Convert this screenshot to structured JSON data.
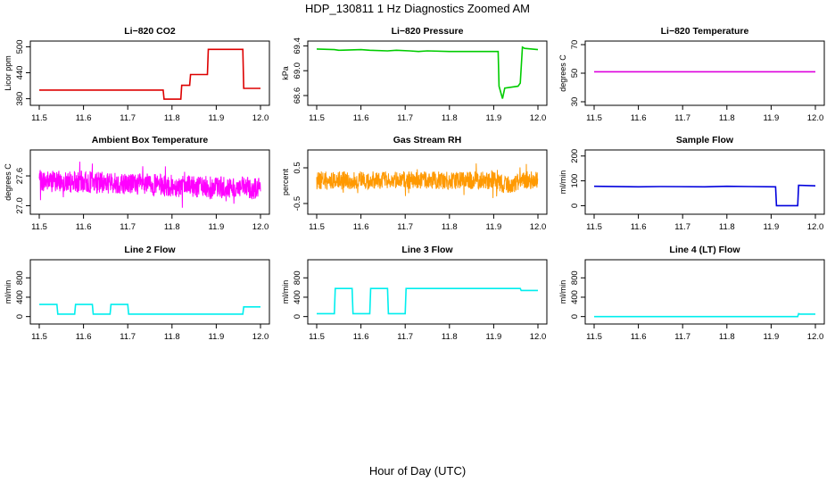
{
  "figure": {
    "title": "HDP_130811  1 Hz Diagnostics Zoomed AM",
    "xlabel": "Hour of Day (UTC)"
  },
  "chart_data": [
    {
      "type": "line",
      "title": "Li−820 CO2",
      "xlabel": "",
      "ylabel": "Licor ppm",
      "color": "#dd0000",
      "xlim": [
        11.5,
        12.0
      ],
      "ylim": [
        373,
        505
      ],
      "xticks": [
        11.5,
        11.6,
        11.7,
        11.8,
        11.9,
        12.0
      ],
      "yticks": [
        380,
        440,
        500
      ],
      "series": [
        {
          "x": [
            11.5,
            11.78,
            11.782,
            11.82,
            11.822,
            11.84,
            11.842,
            11.88,
            11.882,
            11.96,
            11.962,
            12.0
          ],
          "y": [
            400,
            400,
            379,
            379,
            411,
            411,
            436,
            436,
            494,
            494,
            404,
            404
          ]
        }
      ]
    },
    {
      "type": "line",
      "title": "Li−820 Pressure",
      "xlabel": "",
      "ylabel": "kPa",
      "color": "#00cc00",
      "xlim": [
        11.5,
        12.0
      ],
      "ylim": [
        68.5,
        69.42
      ],
      "xticks": [
        11.5,
        11.6,
        11.7,
        11.8,
        11.9,
        12.0
      ],
      "yticks": [
        68.6,
        69.0,
        69.4
      ],
      "series": [
        {
          "x": [
            11.5,
            11.54,
            11.55,
            11.6,
            11.62,
            11.66,
            11.68,
            11.71,
            11.73,
            11.75,
            11.8,
            11.85,
            11.91,
            11.912,
            11.92,
            11.925,
            11.955,
            11.96,
            11.965,
            11.97,
            12.0
          ],
          "y": [
            69.35,
            69.34,
            69.33,
            69.34,
            69.33,
            69.32,
            69.33,
            69.32,
            69.31,
            69.32,
            69.31,
            69.31,
            69.31,
            68.75,
            68.55,
            68.72,
            68.75,
            68.8,
            69.38,
            69.36,
            69.34
          ]
        }
      ]
    },
    {
      "type": "line",
      "title": "Li−820 Temperature",
      "xlabel": "",
      "ylabel": "degrees C",
      "color": "#dd00dd",
      "xlim": [
        11.5,
        12.0
      ],
      "ylim": [
        30,
        70
      ],
      "xticks": [
        11.5,
        11.6,
        11.7,
        11.8,
        11.9,
        12.0
      ],
      "yticks": [
        30,
        50,
        70
      ],
      "series": [
        {
          "x": [
            11.5,
            12.0
          ],
          "y": [
            51,
            51
          ]
        }
      ]
    },
    {
      "type": "line",
      "title": "Ambient Box Temperature",
      "xlabel": "",
      "ylabel": "degrees C",
      "color": "#ff00ff",
      "xlim": [
        11.5,
        12.0
      ],
      "ylim": [
        26.9,
        28.05
      ],
      "xticks": [
        11.5,
        11.6,
        11.7,
        11.8,
        11.9,
        12.0
      ],
      "yticks": [
        27.0,
        27.6
      ],
      "noise": {
        "center": [
          [
            11.5,
            27.5
          ],
          [
            11.7,
            27.45
          ],
          [
            11.8,
            27.4
          ],
          [
            12.0,
            27.35
          ]
        ],
        "amplitude": 0.22,
        "seed": 7
      },
      "series": []
    },
    {
      "type": "line",
      "title": "Gas Stream RH",
      "xlabel": "",
      "ylabel": "percent",
      "color": "#ff9900",
      "xlim": [
        11.5,
        12.0
      ],
      "ylim": [
        -0.7,
        0.9
      ],
      "xticks": [
        11.5,
        11.6,
        11.7,
        11.8,
        11.9,
        12.0
      ],
      "yticks": [
        -0.5,
        0.5
      ],
      "noise": {
        "center": [
          [
            11.5,
            0.15
          ],
          [
            11.8,
            0.15
          ],
          [
            11.9,
            0.15
          ],
          [
            11.93,
            0.0
          ],
          [
            11.97,
            0.15
          ],
          [
            12.0,
            0.15
          ]
        ],
        "amplitude": 0.25,
        "seed": 13
      },
      "series": []
    },
    {
      "type": "line",
      "title": "Sample Flow",
      "xlabel": "",
      "ylabel": "ml/min",
      "color": "#0000dd",
      "xlim": [
        11.5,
        12.0
      ],
      "ylim": [
        -20,
        210
      ],
      "xticks": [
        11.5,
        11.6,
        11.7,
        11.8,
        11.9,
        12.0
      ],
      "yticks": [
        0,
        100,
        200
      ],
      "series": [
        {
          "x": [
            11.5,
            11.6,
            11.65,
            11.75,
            11.8,
            11.85,
            11.91,
            11.912,
            11.95,
            11.952,
            11.96,
            11.962,
            12.0
          ],
          "y": [
            78,
            76,
            77,
            76,
            78,
            77,
            76,
            0,
            0,
            0,
            0,
            82,
            80
          ]
        }
      ]
    },
    {
      "type": "line",
      "title": "Line 2 Flow",
      "xlabel": "",
      "ylabel": "ml/min",
      "color": "#00eeee",
      "xlim": [
        11.5,
        12.0
      ],
      "ylim": [
        -80,
        1100
      ],
      "xticks": [
        11.5,
        11.6,
        11.7,
        11.8,
        11.9,
        12.0
      ],
      "yticks": [
        0,
        400,
        800
      ],
      "series": [
        {
          "x": [
            11.5,
            11.54,
            11.542,
            11.58,
            11.582,
            11.62,
            11.622,
            11.66,
            11.662,
            11.7,
            11.702,
            11.96,
            11.962,
            12.0
          ],
          "y": [
            250,
            250,
            50,
            50,
            250,
            250,
            50,
            50,
            250,
            250,
            50,
            50,
            200,
            200
          ]
        }
      ]
    },
    {
      "type": "line",
      "title": "Line 3 Flow",
      "xlabel": "",
      "ylabel": "ml/min",
      "color": "#00eeee",
      "xlim": [
        11.5,
        12.0
      ],
      "ylim": [
        -80,
        1100
      ],
      "xticks": [
        11.5,
        11.6,
        11.7,
        11.8,
        11.9,
        12.0
      ],
      "yticks": [
        0,
        400,
        800
      ],
      "series": [
        {
          "x": [
            11.5,
            11.54,
            11.542,
            11.58,
            11.582,
            11.62,
            11.622,
            11.66,
            11.662,
            11.7,
            11.702,
            11.96,
            11.962,
            12.0
          ],
          "y": [
            60,
            60,
            580,
            580,
            60,
            60,
            580,
            580,
            60,
            60,
            580,
            580,
            540,
            540
          ]
        }
      ]
    },
    {
      "type": "line",
      "title": "Line 4 (LT) Flow",
      "xlabel": "",
      "ylabel": "ml/min",
      "color": "#00eeee",
      "xlim": [
        11.5,
        12.0
      ],
      "ylim": [
        -80,
        1100
      ],
      "xticks": [
        11.5,
        11.6,
        11.7,
        11.8,
        11.9,
        12.0
      ],
      "yticks": [
        0,
        400,
        800
      ],
      "series": [
        {
          "x": [
            11.5,
            11.96,
            11.962,
            11.965,
            12.0
          ],
          "y": [
            0,
            0,
            60,
            50,
            50
          ]
        }
      ]
    }
  ]
}
